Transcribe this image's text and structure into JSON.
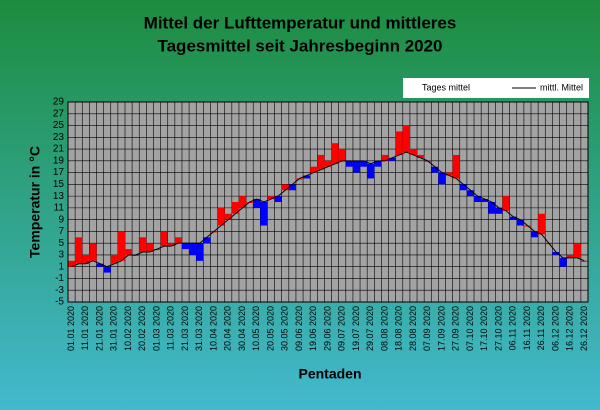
{
  "chart_data": {
    "type": "band",
    "title": [
      "Mittel der Lufttemperatur und mittleres",
      "Tagesmittel seit Jahresbeginn 2020"
    ],
    "x_label": "Pentaden",
    "y_label": "Temperatur in °C",
    "categories": [
      "01.01 2020",
      null,
      "11.01 2020",
      null,
      "21.01 2020",
      null,
      "31.01 2020",
      null,
      "10.02 2020",
      null,
      "20.02 2020",
      null,
      "01.03 2020",
      null,
      "11.03 2020",
      null,
      "21.03 2020",
      null,
      "31.03 2020",
      null,
      "10.04 2020",
      null,
      "20.04 2020",
      null,
      "30.04 2020",
      null,
      "10.05 2020",
      null,
      "20.05 2020",
      null,
      "30.05 2020",
      null,
      "09.06 2020",
      null,
      "19.06 2020",
      null,
      "29.06 2020",
      null,
      "09.07 2020",
      null,
      "19.07 2020",
      null,
      "29.07 2020",
      null,
      "08.08 2020",
      null,
      "18.08 2020",
      null,
      "28.08 2020",
      null,
      "07.09 2020",
      null,
      "17.09 2020",
      null,
      "27.09 2020",
      null,
      "07.10 2020",
      null,
      "17.10 2020",
      null,
      "27.10 2020",
      null,
      "06.11 2020",
      null,
      "16.11 2020",
      null,
      "26.11 2020",
      null,
      "06.12 2020",
      null,
      "16.12 2020",
      null,
      "26.12 2020"
    ],
    "series": [
      {
        "name": "Tages mittel",
        "color_above": "#ff0000",
        "color_below": "#0000ff",
        "values": [
          2,
          6,
          3,
          5,
          1,
          0,
          3,
          7,
          4,
          3,
          6,
          5,
          4,
          7,
          5,
          6,
          4,
          3,
          2,
          5,
          7,
          11,
          10,
          12,
          13,
          12,
          11,
          8,
          13,
          12,
          15,
          14,
          16,
          16,
          18,
          20,
          19,
          22,
          21,
          18,
          17,
          18,
          16,
          18,
          20,
          19,
          24,
          25,
          21,
          20,
          19,
          17,
          15,
          17,
          20,
          14,
          13,
          12,
          12,
          10,
          10,
          13,
          9,
          8,
          8,
          6,
          10,
          5,
          3,
          1,
          3,
          5,
          2
        ]
      },
      {
        "name": "mittl. Mittel",
        "color": "#000000",
        "values": [
          1,
          1.5,
          1.5,
          2,
          1.5,
          1,
          1.5,
          2,
          3,
          3,
          3.5,
          3.5,
          4,
          4.5,
          4.5,
          5,
          5,
          5,
          5,
          6,
          7,
          8,
          9,
          10,
          11,
          12,
          12.5,
          12,
          12.5,
          13,
          14,
          15,
          16,
          16.5,
          17,
          17.5,
          18,
          18.5,
          19,
          19,
          19,
          19,
          18.5,
          19,
          19,
          19.5,
          20,
          20.5,
          20,
          19.5,
          19,
          18,
          17,
          16.5,
          16,
          15,
          14,
          13,
          12.5,
          12,
          11,
          10.5,
          9.5,
          9,
          8,
          7,
          6.5,
          5,
          3.5,
          2.5,
          2.5,
          2.5,
          2
        ]
      }
    ],
    "ylim": [
      -5,
      29
    ],
    "yticks": [
      -5,
      -3,
      -1,
      1,
      3,
      5,
      7,
      9,
      11,
      13,
      15,
      17,
      19,
      21,
      23,
      25,
      27,
      29
    ],
    "grid": true
  }
}
